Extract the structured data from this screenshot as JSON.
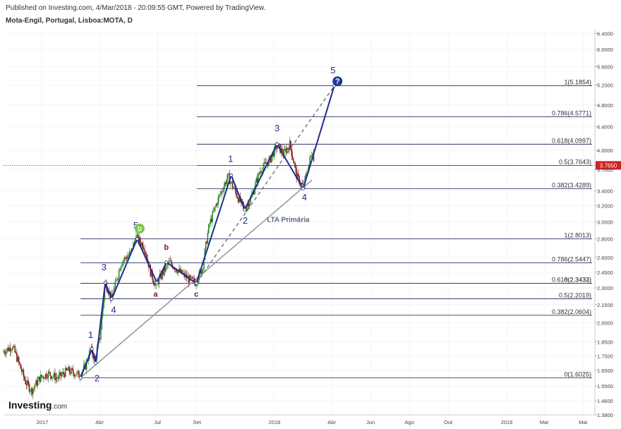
{
  "header": {
    "published": "Published on Investing.com, 4/Mar/2018 - 20:09:55 GMT, Powered by TradingView.",
    "symbol": "Mota-Engil, Portugal, Lisboa:MOTA, D"
  },
  "logo": {
    "brand": "Investing",
    "suffix": ".com"
  },
  "chart_data": {
    "type": "line",
    "yscale": "log",
    "ylim": [
      1.38,
      6.5
    ],
    "y_ticks": [
      "6.4000",
      "6.0000",
      "5.6000",
      "5.2000",
      "4.8000",
      "4.4000",
      "4.0000",
      "3.7000",
      "3.4000",
      "3.2000",
      "3.0000",
      "2.8000",
      "2.6000",
      "2.4500",
      "2.3000",
      "2.1500",
      "2.0000",
      "1.8500",
      "1.7500",
      "1.6500",
      "1.5500",
      "1.4600",
      "1.3800"
    ],
    "y_tick_values": [
      6.4,
      6.0,
      5.6,
      5.2,
      4.8,
      4.4,
      4.0,
      3.7,
      3.4,
      3.2,
      3.0,
      2.8,
      2.6,
      2.45,
      2.3,
      2.15,
      2.0,
      1.85,
      1.75,
      1.65,
      1.55,
      1.46,
      1.38
    ],
    "x_ticks": [
      "2017",
      "Abr",
      "Jul",
      "Set",
      "2018",
      "Abr",
      "Jun",
      "Ago",
      "Out",
      "2019",
      "Mar",
      "Mai"
    ],
    "x_tick_dates": [
      "2017-01-01",
      "2017-04-01",
      "2017-07-01",
      "2017-09-01",
      "2018-01-01",
      "2018-04-01",
      "2018-06-01",
      "2018-08-01",
      "2018-10-01",
      "2019-01-01",
      "2019-03-01",
      "2019-05-01"
    ],
    "last_price": "3.7650",
    "last_value": 3.765,
    "price_series": [
      [
        "2016-11-01",
        1.78
      ],
      [
        "2016-11-15",
        1.82
      ],
      [
        "2016-11-25",
        1.7
      ],
      [
        "2016-12-05",
        1.58
      ],
      [
        "2016-12-15",
        1.52
      ],
      [
        "2016-12-28",
        1.6
      ],
      [
        "2017-01-10",
        1.63
      ],
      [
        "2017-01-25",
        1.6
      ],
      [
        "2017-02-10",
        1.65
      ],
      [
        "2017-02-28",
        1.62
      ],
      [
        "2017-03-10",
        1.68
      ],
      [
        "2017-03-18",
        1.8
      ],
      [
        "2017-03-25",
        1.72
      ],
      [
        "2017-04-02",
        1.9
      ],
      [
        "2017-04-10",
        2.35
      ],
      [
        "2017-04-20",
        2.2
      ],
      [
        "2017-05-05",
        2.55
      ],
      [
        "2017-05-20",
        2.65
      ],
      [
        "2017-05-28",
        2.82
      ],
      [
        "2017-06-10",
        2.72
      ],
      [
        "2017-06-20",
        2.45
      ],
      [
        "2017-06-28",
        2.32
      ],
      [
        "2017-07-10",
        2.45
      ],
      [
        "2017-07-20",
        2.55
      ],
      [
        "2017-08-05",
        2.45
      ],
      [
        "2017-08-20",
        2.38
      ],
      [
        "2017-08-30",
        2.35
      ],
      [
        "2017-09-10",
        2.5
      ],
      [
        "2017-09-20",
        2.95
      ],
      [
        "2017-10-05",
        3.3
      ],
      [
        "2017-10-20",
        3.6
      ],
      [
        "2017-11-05",
        3.3
      ],
      [
        "2017-11-15",
        3.15
      ],
      [
        "2017-11-25",
        3.3
      ],
      [
        "2017-12-10",
        3.7
      ],
      [
        "2017-12-25",
        3.85
      ],
      [
        "2018-01-05",
        4.08
      ],
      [
        "2018-01-15",
        3.95
      ],
      [
        "2018-01-25",
        4.1
      ],
      [
        "2018-02-05",
        3.6
      ],
      [
        "2018-02-15",
        3.45
      ],
      [
        "2018-02-22",
        3.7
      ],
      [
        "2018-03-02",
        4.02
      ],
      [
        "2018-03-04",
        3.765
      ]
    ],
    "wave_path": [
      [
        "2017-03-02",
        1.6025
      ],
      [
        "2017-03-20",
        1.8
      ],
      [
        "2017-03-26",
        1.7
      ],
      [
        "2017-04-10",
        2.35
      ],
      [
        "2017-04-20",
        2.2
      ],
      [
        "2017-05-30",
        2.8013
      ],
      [
        "2017-06-30",
        2.35
      ],
      [
        "2017-07-15",
        2.55
      ],
      [
        "2017-08-31",
        2.3432
      ],
      [
        "2017-10-25",
        3.62
      ],
      [
        "2017-11-15",
        3.15
      ],
      [
        "2018-01-05",
        4.1
      ],
      [
        "2018-02-15",
        3.43
      ],
      [
        "2018-04-05",
        5.1854
      ]
    ],
    "wave_labels": [
      {
        "label": "1",
        "date": "2017-03-18",
        "value": 1.88,
        "style": "major"
      },
      {
        "label": "2",
        "date": "2017-03-28",
        "value": 1.58,
        "style": "major"
      },
      {
        "label": "3",
        "date": "2017-04-08",
        "value": 2.47,
        "style": "major"
      },
      {
        "label": "4",
        "date": "2017-04-23",
        "value": 2.08,
        "style": "major"
      },
      {
        "label": "5",
        "date": "2017-05-28",
        "value": 2.92,
        "style": "major"
      },
      {
        "label": "a",
        "date": "2017-06-28",
        "value": 2.22,
        "style": "minor"
      },
      {
        "label": "b",
        "date": "2017-07-15",
        "value": 2.68,
        "style": "minor"
      },
      {
        "label": "c",
        "date": "2017-08-31",
        "value": 2.22,
        "style": "minor"
      },
      {
        "label": "1",
        "date": "2017-10-24",
        "value": 3.82,
        "style": "major"
      },
      {
        "label": "2",
        "date": "2017-11-16",
        "value": 2.98,
        "style": "major"
      },
      {
        "label": "3",
        "date": "2018-01-05",
        "value": 4.32,
        "style": "major"
      },
      {
        "label": "4",
        "date": "2018-02-17",
        "value": 3.27,
        "style": "major"
      },
      {
        "label": "5",
        "date": "2018-04-03",
        "value": 5.45,
        "style": "major"
      }
    ],
    "trendline": {
      "label": "LTA Primária",
      "from": [
        "2017-03-02",
        1.6025
      ],
      "to": [
        "2018-03-01",
        3.55
      ],
      "label_at": [
        "2017-12-20",
        3.0
      ]
    },
    "projection": {
      "from": [
        "2017-08-31",
        2.3432
      ],
      "to": [
        "2018-04-05",
        5.1854
      ]
    },
    "fib_sets": [
      {
        "from_date": "2017-03-02",
        "levels": [
          {
            "label": "1(2.8013)",
            "value": 2.8013
          },
          {
            "label": "0.786(2.5447)",
            "value": 2.5447
          },
          {
            "label": "0.618(2.3433)",
            "value": 2.3433
          },
          {
            "label": "0(2.3432)",
            "value": 2.3432
          },
          {
            "label": "0.5(2.2019)",
            "value": 2.2019
          },
          {
            "label": "0.382(2.0604)",
            "value": 2.0604
          },
          {
            "label": "0(1.6025)",
            "value": 1.6025
          }
        ]
      },
      {
        "from_date": "2017-09-01",
        "levels": [
          {
            "label": "1(5.1854)",
            "value": 5.1854
          },
          {
            "label": "0.786(4.5771)",
            "value": 4.5771
          },
          {
            "label": "0.618(4.0997)",
            "value": 4.0997
          },
          {
            "label": "0.5(3.7643)",
            "value": 3.7643
          },
          {
            "label": "0.382(3.4289)",
            "value": 3.4289
          }
        ]
      }
    ],
    "badges": [
      {
        "label": "D",
        "date": "2017-06-03",
        "value": 2.92,
        "color": "#7ac943"
      },
      {
        "label": "?",
        "date": "2018-04-10",
        "value": 5.28,
        "color": "#1a3a9c"
      }
    ]
  },
  "colors": {
    "up_candle": "#2a8a2a",
    "down_candle": "#8a1a1a",
    "wave": "#1f2d8c",
    "trendline": "#999999",
    "fib_line": "#333366",
    "price_line": "#d02020",
    "last_price_bg": "#d02020",
    "grid": "#eeeeee"
  }
}
